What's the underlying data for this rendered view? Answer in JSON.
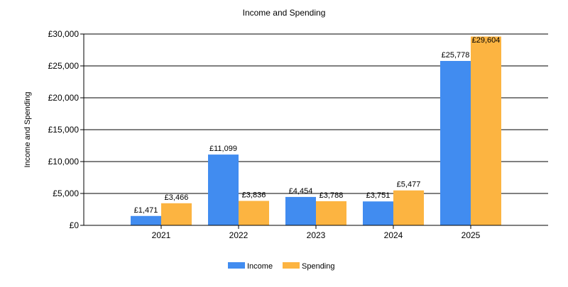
{
  "chart_data": {
    "type": "bar",
    "title": "Income and Spending",
    "xlabel": "",
    "ylabel": "Income and Spending",
    "categories": [
      "2021",
      "2022",
      "2023",
      "2024",
      "2025"
    ],
    "series": [
      {
        "name": "Income",
        "color": "#418CF0",
        "values": [
          1471,
          11099,
          4454,
          3751,
          25778
        ],
        "labels": [
          "£1,471",
          "£11,099",
          "£4,454",
          "£3,751",
          "£25,778"
        ]
      },
      {
        "name": "Spending",
        "color": "#FCB441",
        "values": [
          3466,
          3836,
          3788,
          5477,
          29604
        ],
        "labels": [
          "£3,466",
          "£3,836",
          "£3,788",
          "£5,477",
          "£29,604"
        ]
      }
    ],
    "ylim": [
      0,
      30000
    ],
    "yticks": [
      0,
      5000,
      10000,
      15000,
      20000,
      25000,
      30000
    ],
    "ytick_labels": [
      "£0",
      "£5,000",
      "£10,000",
      "£15,000",
      "£20,000",
      "£25,000",
      "£30,000"
    ],
    "grid": true,
    "legend": "bottom-center"
  }
}
